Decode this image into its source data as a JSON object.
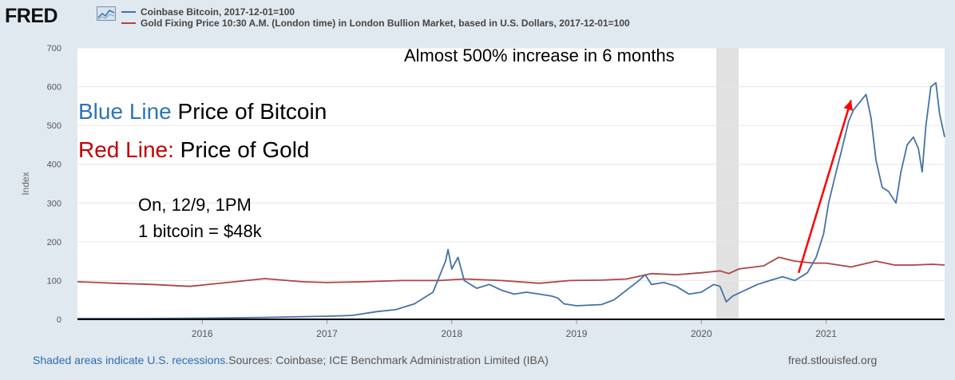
{
  "header": {
    "logo_text": "FRED",
    "logo_icon": "chart-line-icon"
  },
  "legend": [
    {
      "label": "Coinbase Bitcoin, 2017-12-01=100",
      "color": "#4572a7"
    },
    {
      "label": "Gold Fixing Price 10:30 A.M. (London time) in London Bullion Market, based in U.S. Dollars, 2017-12-01=100",
      "color": "#aa4643"
    }
  ],
  "annotations": {
    "top": "Almost 500% increase in 6 months",
    "blue_prefix": "Blue Line",
    "blue_rest": " Price of Bitcoin",
    "red_prefix": "Red Line:",
    "red_rest": "  Price of Gold",
    "date_line": "On, 12/9, 1PM",
    "price_line": "1 bitcoin = $48k"
  },
  "footer": {
    "recession_note": "Shaded areas indicate U.S. recessions.",
    "sources": "Sources: Coinbase; ICE Benchmark Administration Limited (IBA)",
    "url": "fred.stlouisfed.org"
  },
  "chart_data": {
    "type": "line",
    "ylabel": "Index",
    "xlabel": "",
    "ylim": [
      0,
      700
    ],
    "xlim": [
      2015.0,
      2021.95
    ],
    "yticks": [
      0,
      100,
      200,
      300,
      400,
      500,
      600,
      700
    ],
    "xticks": [
      {
        "value": 2016.0,
        "label": "2016"
      },
      {
        "value": 2017.0,
        "label": "2017"
      },
      {
        "value": 2018.0,
        "label": "2018"
      },
      {
        "value": 2019.0,
        "label": "2019"
      },
      {
        "value": 2020.0,
        "label": "2020"
      },
      {
        "value": 2021.0,
        "label": "2021"
      }
    ],
    "grid": true,
    "recession": [
      2020.12,
      2020.3
    ],
    "series": [
      {
        "name": "Coinbase Bitcoin, 2017-12-01=100",
        "color": "#4572a7",
        "points": [
          [
            2015.0,
            2
          ],
          [
            2015.5,
            2
          ],
          [
            2016.0,
            3
          ],
          [
            2016.5,
            5
          ],
          [
            2017.0,
            8
          ],
          [
            2017.2,
            10
          ],
          [
            2017.4,
            20
          ],
          [
            2017.55,
            25
          ],
          [
            2017.7,
            40
          ],
          [
            2017.85,
            70
          ],
          [
            2017.95,
            150
          ],
          [
            2017.97,
            180
          ],
          [
            2018.0,
            130
          ],
          [
            2018.05,
            160
          ],
          [
            2018.1,
            100
          ],
          [
            2018.2,
            80
          ],
          [
            2018.3,
            90
          ],
          [
            2018.4,
            75
          ],
          [
            2018.5,
            65
          ],
          [
            2018.6,
            70
          ],
          [
            2018.7,
            65
          ],
          [
            2018.8,
            60
          ],
          [
            2018.85,
            55
          ],
          [
            2018.9,
            40
          ],
          [
            2019.0,
            35
          ],
          [
            2019.2,
            38
          ],
          [
            2019.3,
            50
          ],
          [
            2019.4,
            75
          ],
          [
            2019.5,
            100
          ],
          [
            2019.55,
            115
          ],
          [
            2019.6,
            90
          ],
          [
            2019.7,
            95
          ],
          [
            2019.8,
            85
          ],
          [
            2019.9,
            65
          ],
          [
            2020.0,
            70
          ],
          [
            2020.1,
            90
          ],
          [
            2020.15,
            85
          ],
          [
            2020.2,
            45
          ],
          [
            2020.25,
            60
          ],
          [
            2020.35,
            75
          ],
          [
            2020.45,
            90
          ],
          [
            2020.55,
            100
          ],
          [
            2020.65,
            110
          ],
          [
            2020.75,
            100
          ],
          [
            2020.85,
            120
          ],
          [
            2020.92,
            160
          ],
          [
            2020.98,
            220
          ],
          [
            2021.02,
            300
          ],
          [
            2021.08,
            380
          ],
          [
            2021.12,
            430
          ],
          [
            2021.18,
            510
          ],
          [
            2021.22,
            540
          ],
          [
            2021.27,
            560
          ],
          [
            2021.32,
            580
          ],
          [
            2021.36,
            520
          ],
          [
            2021.4,
            410
          ],
          [
            2021.45,
            340
          ],
          [
            2021.5,
            330
          ],
          [
            2021.56,
            300
          ],
          [
            2021.6,
            380
          ],
          [
            2021.65,
            450
          ],
          [
            2021.7,
            470
          ],
          [
            2021.74,
            440
          ],
          [
            2021.77,
            380
          ],
          [
            2021.8,
            500
          ],
          [
            2021.84,
            600
          ],
          [
            2021.88,
            610
          ],
          [
            2021.91,
            530
          ],
          [
            2021.95,
            470
          ]
        ]
      },
      {
        "name": "Gold Fixing Price 10:30 A.M. (London time) in London Bullion Market, based in U.S. Dollars, 2017-12-01=100",
        "color": "#aa4643",
        "points": [
          [
            2015.0,
            97
          ],
          [
            2015.3,
            93
          ],
          [
            2015.6,
            90
          ],
          [
            2015.9,
            85
          ],
          [
            2016.2,
            95
          ],
          [
            2016.5,
            105
          ],
          [
            2016.8,
            97
          ],
          [
            2017.0,
            95
          ],
          [
            2017.3,
            97
          ],
          [
            2017.6,
            100
          ],
          [
            2017.9,
            100
          ],
          [
            2018.1,
            104
          ],
          [
            2018.4,
            100
          ],
          [
            2018.7,
            93
          ],
          [
            2018.95,
            100
          ],
          [
            2019.2,
            101
          ],
          [
            2019.4,
            104
          ],
          [
            2019.6,
            118
          ],
          [
            2019.8,
            115
          ],
          [
            2020.0,
            120
          ],
          [
            2020.15,
            125
          ],
          [
            2020.22,
            118
          ],
          [
            2020.3,
            130
          ],
          [
            2020.5,
            138
          ],
          [
            2020.62,
            160
          ],
          [
            2020.75,
            150
          ],
          [
            2020.9,
            145
          ],
          [
            2021.0,
            145
          ],
          [
            2021.2,
            135
          ],
          [
            2021.4,
            150
          ],
          [
            2021.55,
            140
          ],
          [
            2021.7,
            140
          ],
          [
            2021.85,
            142
          ],
          [
            2021.95,
            140
          ]
        ]
      }
    ]
  }
}
